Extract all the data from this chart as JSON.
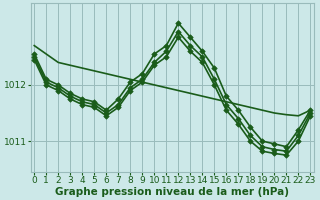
{
  "bg_color": "#cce8e8",
  "plot_bg_color": "#cce8e8",
  "grid_color": "#99bbbb",
  "line_color": "#1a5c1a",
  "xlabel": "Graphe pression niveau de la mer (hPa)",
  "xlabel_fontsize": 7.5,
  "tick_fontsize": 6.5,
  "yticks": [
    1011,
    1012
  ],
  "ylim": [
    1010.45,
    1013.45
  ],
  "xlim": [
    -0.3,
    23.3
  ],
  "xticks": [
    0,
    1,
    2,
    3,
    4,
    5,
    6,
    7,
    8,
    9,
    10,
    11,
    12,
    13,
    14,
    15,
    16,
    17,
    18,
    19,
    20,
    21,
    22,
    23
  ],
  "series": [
    {
      "x": [
        0,
        1,
        2,
        3,
        4,
        5,
        6,
        7,
        8,
        9,
        10,
        11,
        12,
        13,
        14,
        15,
        16,
        17,
        18,
        19,
        20,
        21,
        22,
        23
      ],
      "y": [
        1012.7,
        1012.55,
        1012.4,
        1012.35,
        1012.3,
        1012.25,
        1012.2,
        1012.15,
        1012.1,
        1012.05,
        1012.0,
        1011.95,
        1011.9,
        1011.85,
        1011.8,
        1011.75,
        1011.7,
        1011.65,
        1011.6,
        1011.55,
        1011.5,
        1011.47,
        1011.45,
        1011.55
      ],
      "marker": null,
      "markersize": 0,
      "linewidth": 1.2,
      "linestyle": "-"
    },
    {
      "x": [
        0,
        1,
        2,
        3,
        4,
        5,
        6,
        7,
        8,
        9,
        10,
        11,
        12,
        13,
        14,
        15,
        16,
        17,
        18,
        19,
        20,
        21,
        22,
        23
      ],
      "y": [
        1012.55,
        1012.1,
        1012.0,
        1011.85,
        1011.75,
        1011.7,
        1011.55,
        1011.75,
        1012.05,
        1012.2,
        1012.55,
        1012.7,
        1013.1,
        1012.85,
        1012.6,
        1012.3,
        1011.8,
        1011.55,
        1011.25,
        1011.0,
        1010.95,
        1010.9,
        1011.2,
        1011.55
      ],
      "marker": "D",
      "markersize": 2.8,
      "linewidth": 1.2,
      "linestyle": "-"
    },
    {
      "x": [
        0,
        1,
        2,
        3,
        4,
        5,
        6,
        7,
        8,
        9,
        10,
        11,
        12,
        13,
        14,
        15,
        16,
        17,
        18,
        19,
        20,
        21,
        22,
        23
      ],
      "y": [
        1012.5,
        1012.05,
        1011.95,
        1011.8,
        1011.7,
        1011.65,
        1011.5,
        1011.65,
        1011.95,
        1012.1,
        1012.4,
        1012.6,
        1012.95,
        1012.7,
        1012.5,
        1012.1,
        1011.65,
        1011.4,
        1011.1,
        1010.9,
        1010.85,
        1010.82,
        1011.1,
        1011.5
      ],
      "marker": "D",
      "markersize": 2.8,
      "linewidth": 1.2,
      "linestyle": "-"
    },
    {
      "x": [
        0,
        1,
        2,
        3,
        4,
        5,
        6,
        7,
        8,
        9,
        10,
        11,
        12,
        13,
        14,
        15,
        16,
        17,
        18,
        19,
        20,
        21,
        22,
        23
      ],
      "y": [
        1012.45,
        1012.0,
        1011.9,
        1011.75,
        1011.65,
        1011.6,
        1011.45,
        1011.6,
        1011.9,
        1012.05,
        1012.35,
        1012.5,
        1012.85,
        1012.6,
        1012.4,
        1012.0,
        1011.55,
        1011.3,
        1011.0,
        1010.82,
        1010.78,
        1010.75,
        1011.0,
        1011.45
      ],
      "marker": "D",
      "markersize": 2.8,
      "linewidth": 1.2,
      "linestyle": "-"
    }
  ]
}
